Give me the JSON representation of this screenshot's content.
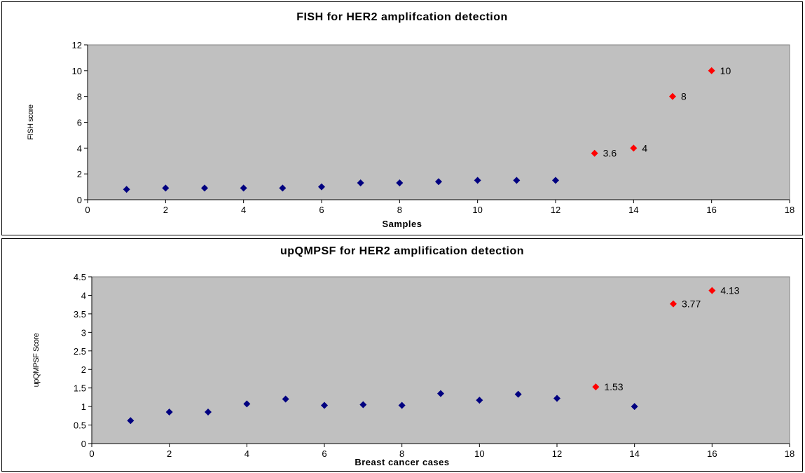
{
  "chart_data": [
    {
      "type": "scatter",
      "title": "FISH for HER2 amplifcation detection",
      "xlabel": "Samples",
      "ylabel": "FISH score",
      "xlim": [
        0,
        18
      ],
      "ylim": [
        0,
        12
      ],
      "xticks": [
        0,
        2,
        4,
        6,
        8,
        10,
        12,
        14,
        16,
        18
      ],
      "yticks": [
        0,
        2,
        4,
        6,
        8,
        10,
        12
      ],
      "plot_background": "#c0c0c0",
      "series": [
        {
          "color": "#000080",
          "x": [
            1,
            2,
            3,
            4,
            5,
            6,
            7,
            8,
            9,
            10,
            11,
            12
          ],
          "y": [
            0.8,
            0.9,
            0.9,
            0.9,
            0.9,
            1.0,
            1.3,
            1.3,
            1.4,
            1.5,
            1.5,
            1.5
          ]
        },
        {
          "color": "#ff0000",
          "x": [
            13,
            14,
            15,
            16
          ],
          "y": [
            3.6,
            4,
            8,
            10
          ],
          "labels": [
            "3.6",
            "4",
            "8",
            "10"
          ]
        }
      ]
    },
    {
      "type": "scatter",
      "title": "upQMPSF for HER2 amplification detection",
      "xlabel": "Breast cancer cases",
      "ylabel": "upQMPSF Score",
      "xlim": [
        0,
        18
      ],
      "ylim": [
        0,
        4.5
      ],
      "xticks": [
        0,
        2,
        4,
        6,
        8,
        10,
        12,
        14,
        16,
        18
      ],
      "yticks": [
        0,
        0.5,
        1,
        1.5,
        2,
        2.5,
        3,
        3.5,
        4,
        4.5
      ],
      "plot_background": "#c0c0c0",
      "series": [
        {
          "color": "#000080",
          "x": [
            1,
            2,
            3,
            4,
            5,
            6,
            7,
            8,
            9,
            10,
            11,
            12,
            14
          ],
          "y": [
            0.62,
            0.85,
            0.85,
            1.07,
            1.2,
            1.03,
            1.05,
            1.03,
            1.35,
            1.17,
            1.33,
            1.22,
            1.0
          ]
        },
        {
          "color": "#ff0000",
          "x": [
            13,
            15,
            16
          ],
          "y": [
            1.53,
            3.77,
            4.13
          ],
          "labels": [
            "1.53",
            "3.77",
            "4.13"
          ]
        }
      ]
    }
  ]
}
